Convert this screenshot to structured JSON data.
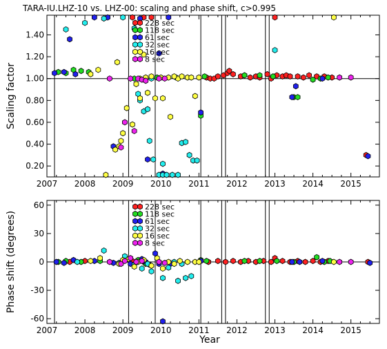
{
  "title": "TARA-IU.LHZ-10 vs. LHZ-00: scaling and phase shift, c>0.995",
  "xlabel": "Year",
  "colors": {
    "228 sec": "#ff2020",
    "118 sec": "#22dd22",
    "61 sec": "#2020ee",
    "32 sec": "#22eeee",
    "16 sec": "#ffff44",
    "8 sec": "#ee22ee",
    "frame": "#000000",
    "background": "#ffffff"
  },
  "legend": [
    "228 sec",
    "118 sec",
    "61 sec",
    "32 sec",
    "16 sec",
    "8 sec"
  ],
  "vertical_lines": [
    2007.2,
    2009.15,
    2009.85,
    2011.05,
    2011.6,
    2011.7,
    2012.75,
    2012.85
  ],
  "chart_data": [
    {
      "type": "scatter",
      "ylabel": "Scaling factor",
      "xlim": [
        2007.0,
        2015.75
      ],
      "ylim": [
        0.1,
        1.58
      ],
      "xticks": [
        2007,
        2008,
        2009,
        2010,
        2011,
        2012,
        2013,
        2014,
        2015
      ],
      "yticks": [
        0.2,
        0.4,
        0.6,
        0.8,
        1.0,
        1.2,
        1.4
      ],
      "ytick_labels": [
        "0.20",
        "0.40",
        "0.60",
        "0.80",
        "1.00",
        "1.20",
        "1.40"
      ],
      "reference_line": 1.0,
      "series": [
        {
          "name": "228 sec",
          "points": [
            [
              2009.25,
              1.56
            ],
            [
              2009.55,
              1.56
            ],
            [
              2009.75,
              1.56
            ],
            [
              2011.2,
              1.01
            ],
            [
              2011.3,
              1.0
            ],
            [
              2011.4,
              1.0
            ],
            [
              2011.5,
              1.02
            ],
            [
              2011.65,
              1.03
            ],
            [
              2011.75,
              1.05
            ],
            [
              2011.8,
              1.07
            ],
            [
              2011.9,
              1.04
            ],
            [
              2012.1,
              1.02
            ],
            [
              2012.2,
              1.03
            ],
            [
              2012.35,
              1.01
            ],
            [
              2012.5,
              1.02
            ],
            [
              2012.6,
              1.01
            ],
            [
              2012.8,
              1.04
            ],
            [
              2012.9,
              1.0
            ],
            [
              2013.05,
              1.03
            ],
            [
              2013.2,
              1.02
            ],
            [
              2013.3,
              1.03
            ],
            [
              2013.4,
              1.02
            ],
            [
              2013.6,
              1.02
            ],
            [
              2013.75,
              1.01
            ],
            [
              2013.9,
              1.03
            ],
            [
              2014.1,
              1.02
            ],
            [
              2014.3,
              1.02
            ],
            [
              2014.5,
              1.01
            ],
            [
              2013.0,
              1.56
            ],
            [
              2015.4,
              0.3
            ]
          ]
        },
        {
          "name": "118 sec",
          "points": [
            [
              2007.3,
              1.06
            ],
            [
              2007.5,
              1.05
            ],
            [
              2007.7,
              1.08
            ],
            [
              2007.9,
              1.07
            ],
            [
              2008.1,
              1.06
            ],
            [
              2009.3,
              1.0
            ],
            [
              2009.6,
              1.0
            ],
            [
              2009.9,
              1.01
            ],
            [
              2011.05,
              0.66
            ],
            [
              2011.15,
              1.02
            ],
            [
              2012.2,
              1.03
            ],
            [
              2012.6,
              1.03
            ],
            [
              2012.95,
              1.02
            ],
            [
              2013.5,
              0.83
            ],
            [
              2013.6,
              0.83
            ],
            [
              2014.0,
              0.99
            ],
            [
              2014.2,
              1.0
            ],
            [
              2014.4,
              1.01
            ]
          ]
        },
        {
          "name": "61 sec",
          "points": [
            [
              2007.2,
              1.05
            ],
            [
              2007.45,
              1.06
            ],
            [
              2007.6,
              1.36
            ],
            [
              2007.75,
              1.04
            ],
            [
              2008.25,
              1.56
            ],
            [
              2008.6,
              1.56
            ],
            [
              2008.75,
              0.38
            ],
            [
              2009.05,
              0.6
            ],
            [
              2009.45,
              1.55
            ],
            [
              2009.65,
              0.26
            ],
            [
              2009.95,
              1.23
            ],
            [
              2010.05,
              0.13
            ],
            [
              2010.2,
              1.56
            ],
            [
              2011.05,
              0.69
            ],
            [
              2013.45,
              0.83
            ],
            [
              2013.55,
              0.93
            ],
            [
              2014.25,
              1.0
            ],
            [
              2015.45,
              0.29
            ]
          ]
        },
        {
          "name": "32 sec",
          "points": [
            [
              2007.5,
              1.45
            ],
            [
              2008.0,
              1.51
            ],
            [
              2008.5,
              1.55
            ],
            [
              2009.0,
              1.56
            ],
            [
              2009.3,
              1.46
            ],
            [
              2009.4,
              0.86
            ],
            [
              2009.45,
              0.8
            ],
            [
              2009.55,
              0.7
            ],
            [
              2009.65,
              0.72
            ],
            [
              2009.7,
              0.43
            ],
            [
              2009.8,
              0.26
            ],
            [
              2009.95,
              0.1
            ],
            [
              2010.05,
              0.1
            ],
            [
              2010.15,
              0.1
            ],
            [
              2010.3,
              0.1
            ],
            [
              2010.45,
              0.1
            ],
            [
              2010.55,
              0.41
            ],
            [
              2010.65,
              0.42
            ],
            [
              2010.75,
              0.3
            ],
            [
              2010.85,
              0.25
            ],
            [
              2010.95,
              0.25
            ],
            [
              2010.05,
              0.22
            ],
            [
              2013.0,
              1.26
            ],
            [
              2009.75,
              1.0
            ],
            [
              2010.4,
              1.01
            ]
          ]
        },
        {
          "name": "16 sec",
          "points": [
            [
              2008.15,
              1.04
            ],
            [
              2008.35,
              1.08
            ],
            [
              2008.95,
              0.43
            ],
            [
              2009.0,
              0.5
            ],
            [
              2009.1,
              0.73
            ],
            [
              2009.25,
              0.58
            ],
            [
              2009.35,
              0.95
            ],
            [
              2009.45,
              0.82
            ],
            [
              2009.55,
              1.22
            ],
            [
              2009.65,
              0.87
            ],
            [
              2009.75,
              1.02
            ],
            [
              2009.85,
              0.82
            ],
            [
              2010.05,
              0.82
            ],
            [
              2010.25,
              0.65
            ],
            [
              2010.45,
              1.0
            ],
            [
              2010.7,
              1.01
            ],
            [
              2010.9,
              0.84
            ],
            [
              2011.0,
              1.01
            ],
            [
              2009.45,
              1.0
            ],
            [
              2009.6,
              1.01
            ],
            [
              2010.0,
              1.01
            ],
            [
              2010.2,
              1.01
            ],
            [
              2010.35,
              1.02
            ],
            [
              2010.55,
              1.02
            ],
            [
              2010.8,
              1.01
            ],
            [
              2014.55,
              1.56
            ],
            [
              2008.8,
              0.35
            ],
            [
              2008.9,
              0.38
            ],
            [
              2008.85,
              1.15
            ],
            [
              2008.55,
              0.1
            ]
          ]
        },
        {
          "name": "8 sec",
          "points": [
            [
              2008.65,
              1.0
            ],
            [
              2008.95,
              0.37
            ],
            [
              2009.05,
              0.6
            ],
            [
              2009.2,
              1.0
            ],
            [
              2009.3,
              0.52
            ],
            [
              2009.4,
              1.0
            ],
            [
              2009.5,
              0.99
            ],
            [
              2009.6,
              0.98
            ],
            [
              2009.95,
              1.0
            ],
            [
              2010.1,
              1.0
            ],
            [
              2014.7,
              1.01
            ],
            [
              2015.0,
              1.01
            ]
          ]
        }
      ]
    },
    {
      "type": "scatter",
      "ylabel": "Phase shift (degrees)",
      "xlabel": "Year",
      "xlim": [
        2007.0,
        2015.75
      ],
      "ylim": [
        -65,
        65
      ],
      "xticks": [
        2007,
        2008,
        2009,
        2010,
        2011,
        2012,
        2013,
        2014,
        2015
      ],
      "yticks": [
        -60,
        -30,
        0,
        30,
        60
      ],
      "ytick_labels": [
        "-60",
        "-30",
        "0",
        "30",
        "60"
      ],
      "reference_line": 0,
      "series": [
        {
          "name": "228 sec",
          "points": [
            [
              2007.6,
              0
            ],
            [
              2008.0,
              1
            ],
            [
              2009.25,
              1
            ],
            [
              2009.55,
              0
            ],
            [
              2011.25,
              0
            ],
            [
              2011.5,
              1
            ],
            [
              2011.7,
              0
            ],
            [
              2011.9,
              1
            ],
            [
              2012.1,
              0
            ],
            [
              2012.3,
              1
            ],
            [
              2012.5,
              0
            ],
            [
              2012.7,
              1
            ],
            [
              2012.9,
              0
            ],
            [
              2013.0,
              4
            ],
            [
              2013.2,
              1
            ],
            [
              2013.4,
              0
            ],
            [
              2013.6,
              1
            ],
            [
              2013.8,
              0
            ],
            [
              2014.0,
              1
            ],
            [
              2014.2,
              0
            ],
            [
              2014.4,
              1
            ],
            [
              2015.45,
              0
            ]
          ]
        },
        {
          "name": "118 sec",
          "points": [
            [
              2007.3,
              0
            ],
            [
              2007.5,
              1
            ],
            [
              2007.9,
              0
            ],
            [
              2008.4,
              1
            ],
            [
              2009.4,
              2
            ],
            [
              2009.6,
              -2
            ],
            [
              2011.05,
              2
            ],
            [
              2011.2,
              1
            ],
            [
              2012.2,
              1
            ],
            [
              2012.6,
              1
            ],
            [
              2013.05,
              1
            ],
            [
              2013.5,
              0
            ],
            [
              2014.1,
              5
            ],
            [
              2014.3,
              0
            ],
            [
              2014.45,
              1
            ]
          ]
        },
        {
          "name": "61 sec",
          "points": [
            [
              2007.25,
              0
            ],
            [
              2007.45,
              -1
            ],
            [
              2007.7,
              2
            ],
            [
              2008.25,
              1
            ],
            [
              2008.75,
              -1
            ],
            [
              2009.2,
              -2
            ],
            [
              2009.5,
              3
            ],
            [
              2009.6,
              0
            ],
            [
              2009.7,
              -3
            ],
            [
              2009.85,
              9
            ],
            [
              2009.95,
              -2
            ],
            [
              2010.05,
              -65
            ],
            [
              2010.25,
              -2
            ],
            [
              2011.05,
              1
            ],
            [
              2013.45,
              0
            ],
            [
              2013.65,
              0
            ],
            [
              2014.25,
              1
            ],
            [
              2015.5,
              -1
            ]
          ]
        },
        {
          "name": "32 sec",
          "points": [
            [
              2007.8,
              0
            ],
            [
              2008.5,
              12
            ],
            [
              2008.9,
              -1
            ],
            [
              2009.05,
              6
            ],
            [
              2009.3,
              -3
            ],
            [
              2009.5,
              -7
            ],
            [
              2009.65,
              -2
            ],
            [
              2009.75,
              -10
            ],
            [
              2010.05,
              -17
            ],
            [
              2010.2,
              -6
            ],
            [
              2010.45,
              -20
            ],
            [
              2010.65,
              -17
            ],
            [
              2010.8,
              -15
            ],
            [
              2010.55,
              -2
            ],
            [
              2010.35,
              0
            ]
          ]
        },
        {
          "name": "16 sec",
          "points": [
            [
              2008.15,
              1
            ],
            [
              2008.4,
              4
            ],
            [
              2008.9,
              -2
            ],
            [
              2009.0,
              2
            ],
            [
              2009.15,
              3
            ],
            [
              2009.3,
              -5
            ],
            [
              2009.4,
              0
            ],
            [
              2009.55,
              2
            ],
            [
              2009.75,
              -4
            ],
            [
              2009.9,
              4
            ],
            [
              2010.05,
              -7
            ],
            [
              2010.2,
              0
            ],
            [
              2010.35,
              -2
            ],
            [
              2010.5,
              1
            ],
            [
              2010.7,
              0
            ],
            [
              2010.9,
              0
            ],
            [
              2011.0,
              0
            ],
            [
              2014.55,
              0
            ]
          ]
        },
        {
          "name": "8 sec",
          "points": [
            [
              2008.65,
              0
            ],
            [
              2008.95,
              -2
            ],
            [
              2009.05,
              1
            ],
            [
              2009.2,
              4
            ],
            [
              2009.35,
              0
            ],
            [
              2009.5,
              1
            ],
            [
              2009.95,
              0
            ],
            [
              2010.1,
              -1
            ],
            [
              2014.7,
              0
            ],
            [
              2015.0,
              0
            ]
          ]
        }
      ]
    }
  ]
}
